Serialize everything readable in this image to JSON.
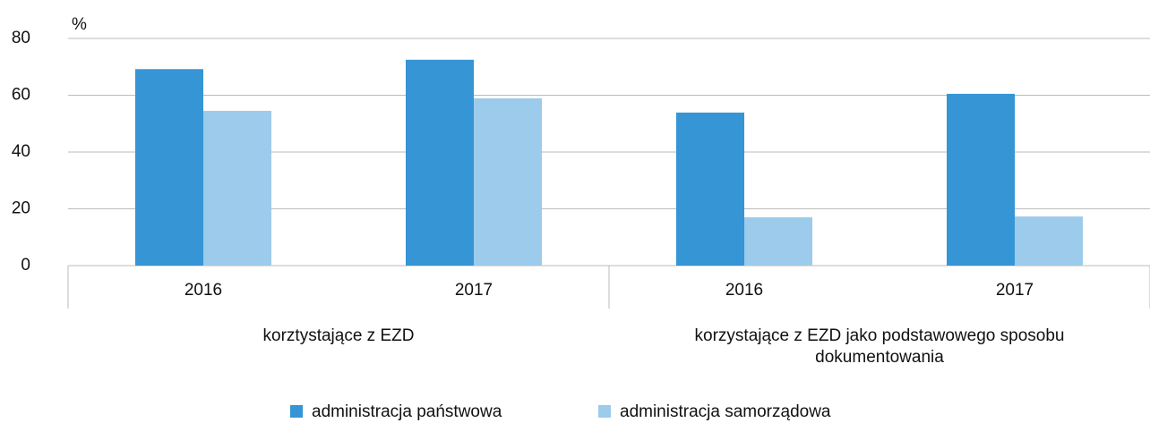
{
  "chart_data": {
    "type": "bar",
    "y_label": "%",
    "categories": [
      "2016",
      "2017",
      "2016",
      "2017"
    ],
    "groups": [
      "korztystające z EZD",
      "korzystające z EZD jako podstawowego sposobu dokumentowania"
    ],
    "series": [
      {
        "name": "administracja państwowa",
        "color": "#3595d5",
        "values": [
          69.2,
          72.5,
          53.9,
          60.5
        ]
      },
      {
        "name": "administracja samorządowa",
        "color": "#9ccbeb",
        "values": [
          54.5,
          58.9,
          17.0,
          17.3
        ]
      }
    ],
    "ylim": [
      0,
      80
    ],
    "yticks": [
      0,
      20,
      40,
      60,
      80
    ],
    "grid": true
  }
}
